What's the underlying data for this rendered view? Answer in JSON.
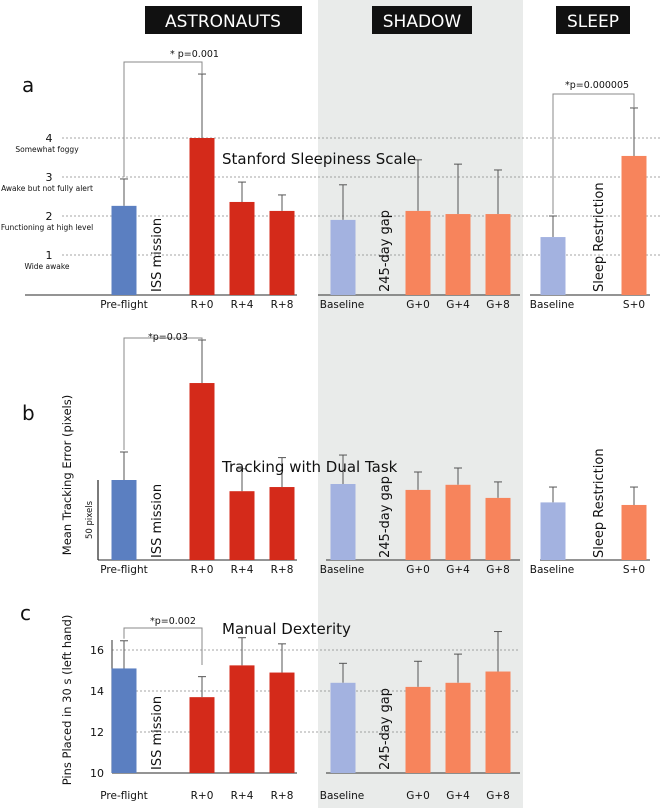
{
  "headers": {
    "astronauts": "ASTRONAUTS",
    "shadow": "SHADOW",
    "sleep": "SLEEP"
  },
  "gap_labels": {
    "iss": "ISS mission",
    "gap": "245-day gap",
    "sleep_restriction": "Sleep Restriction"
  },
  "colors": {
    "preflight": "#5b7fc1",
    "mission": "#d42a1a",
    "baseline": "#a3b2e0",
    "post": "#f7845c",
    "shade": "#e9ebea"
  },
  "chart_data": [
    {
      "type": "bar",
      "panel": "a",
      "title": "Stanford Sleepiness Scale",
      "ylabel": "",
      "ylim": [
        0,
        6
      ],
      "yticks": [
        {
          "value": 1,
          "label": "1",
          "desc": "Wide awake"
        },
        {
          "value": 2,
          "label": "2",
          "desc": "Functioning at high level"
        },
        {
          "value": 3,
          "label": "3",
          "desc": "Awake but not fully alert"
        },
        {
          "value": 4,
          "label": "4",
          "desc": "Somewhat foggy"
        }
      ],
      "categories": [
        "Pre-flight",
        "R+0",
        "R+4",
        "R+8",
        "Baseline",
        "G+0",
        "G+4",
        "G+8",
        "Baseline",
        "S+0"
      ],
      "values": [
        2.26,
        4.0,
        2.36,
        2.13,
        1.9,
        2.13,
        2.05,
        2.05,
        1.46,
        3.54
      ],
      "error_upper": [
        2.95,
        5.64,
        2.87,
        2.54,
        2.8,
        3.44,
        3.33,
        3.18,
        2.0,
        4.77
      ],
      "significance": [
        {
          "from": "Pre-flight",
          "to": "R+0",
          "label": "* p=0.001"
        },
        {
          "from": "Baseline",
          "to": "S+0",
          "label": "*p=0.000005"
        }
      ]
    },
    {
      "type": "bar",
      "panel": "b",
      "title": "Tracking with Dual Task",
      "ylabel": "Mean Tracking Error (pixels)",
      "scale_bar": {
        "value": 50,
        "label": "50 pixels"
      },
      "categories": [
        "Pre-flight",
        "R+0",
        "R+4",
        "R+8",
        "Baseline",
        "G+0",
        "G+4",
        "G+8",
        "Baseline",
        "S+0"
      ],
      "values": [
        50,
        110.6,
        43,
        45.6,
        47.5,
        43.8,
        47,
        38.8,
        36,
        34.4
      ],
      "error_upper": [
        67.5,
        137.5,
        57,
        64,
        65.6,
        55,
        57.5,
        48.8,
        45.6,
        45.6
      ],
      "significance": [
        {
          "from": "Pre-flight",
          "to": "R+0",
          "label": "*p=0.03"
        }
      ]
    },
    {
      "type": "bar",
      "panel": "c",
      "title": "Manual Dexterity",
      "ylabel": "Pins Placed in 30 s (left hand)",
      "ylim": [
        10,
        17
      ],
      "yticks": [
        {
          "value": 10,
          "label": "10"
        },
        {
          "value": 12,
          "label": "12"
        },
        {
          "value": 14,
          "label": "14"
        },
        {
          "value": 16,
          "label": "16"
        }
      ],
      "categories": [
        "Pre-flight",
        "R+0",
        "R+4",
        "R+8",
        "Baseline",
        "G+0",
        "G+4",
        "G+8"
      ],
      "values": [
        15.1,
        13.7,
        15.25,
        14.9,
        14.4,
        14.2,
        14.4,
        14.95
      ],
      "error_upper": [
        16.45,
        14.7,
        16.6,
        16.3,
        15.35,
        15.45,
        15.8,
        16.9
      ],
      "significance": [
        {
          "from": "Pre-flight",
          "to": "R+0",
          "label": "*p=0.002"
        }
      ]
    }
  ]
}
